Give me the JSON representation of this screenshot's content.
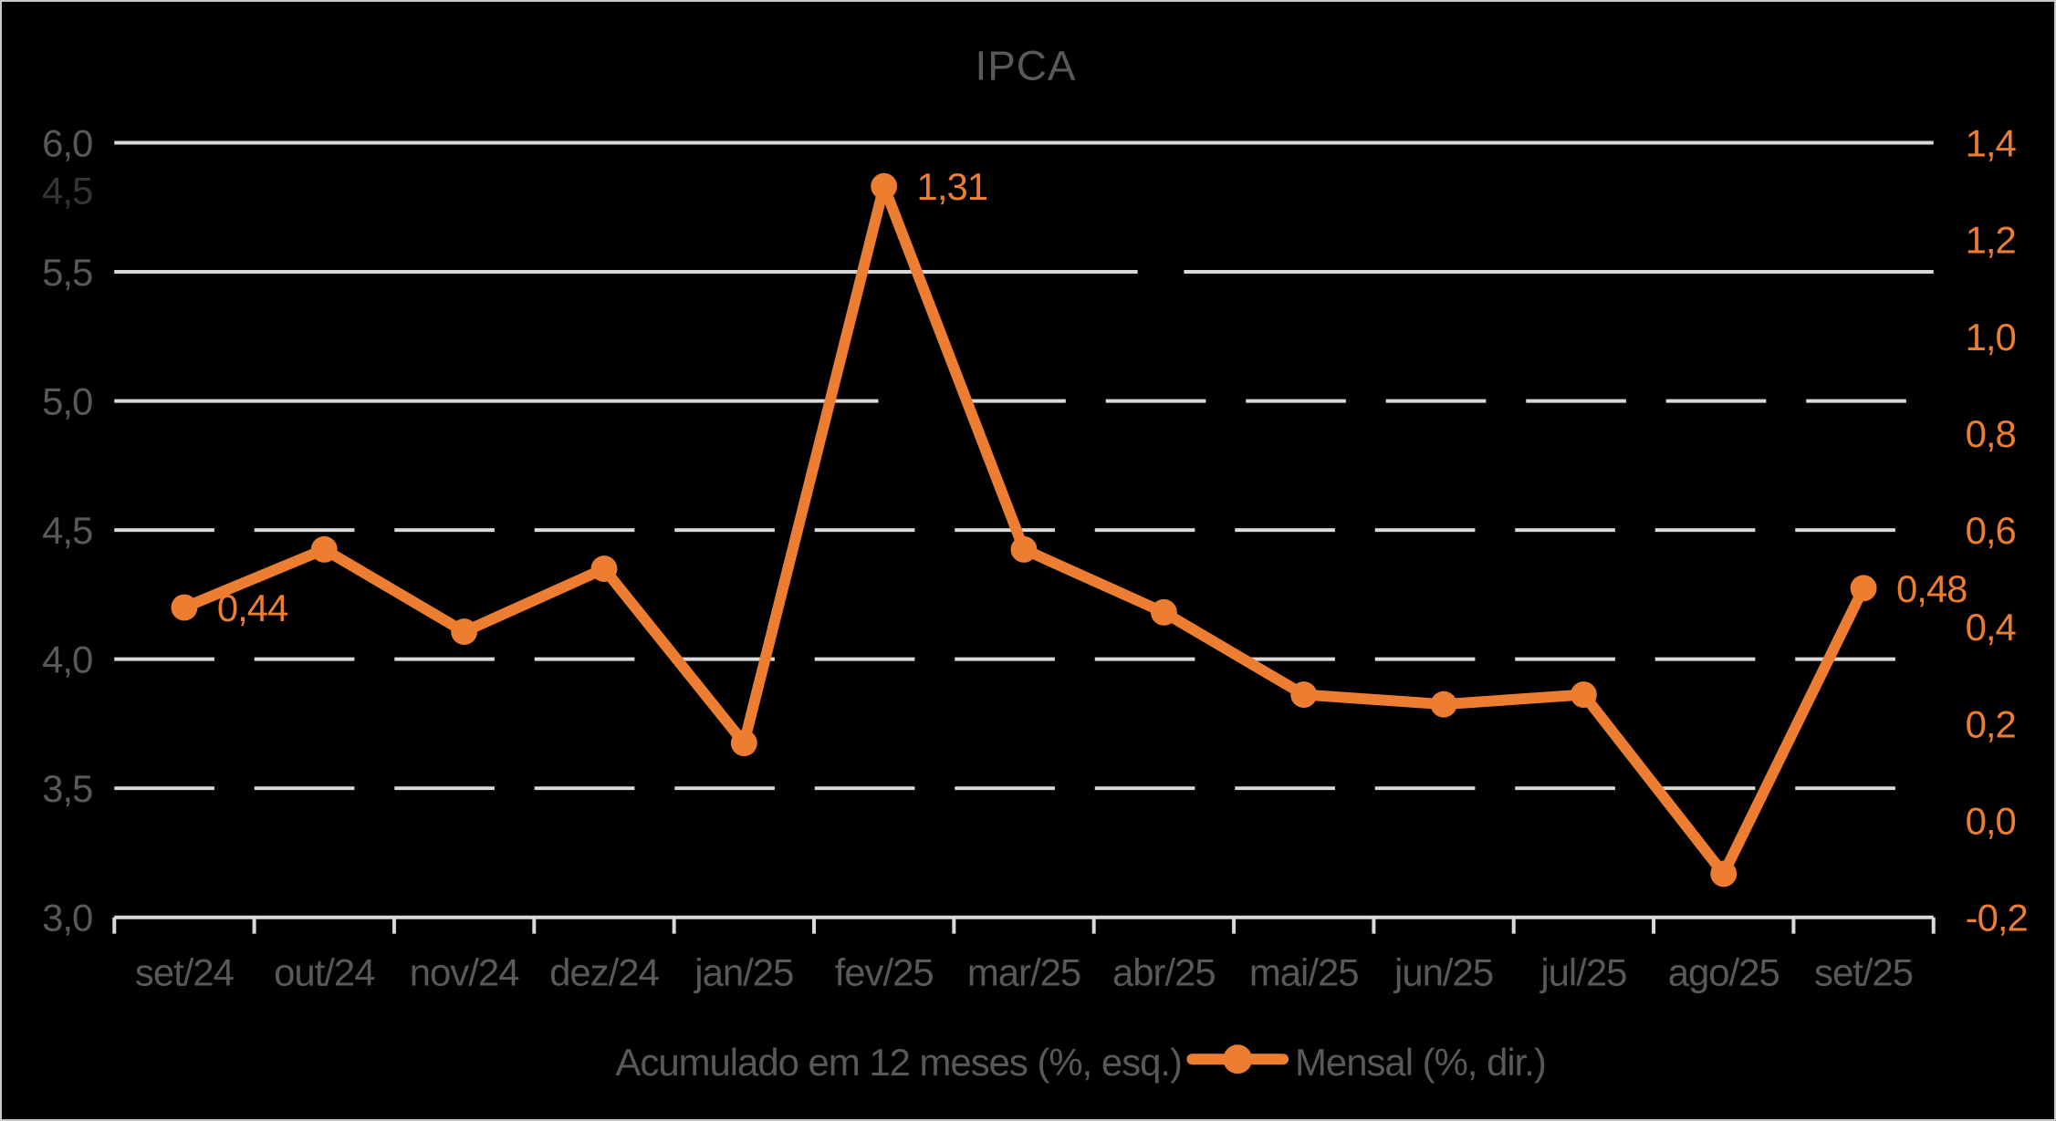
{
  "window": {
    "background": "#000000",
    "border_color": "#C9C9C9"
  },
  "chart_data": {
    "type": "line",
    "title": "IPCA",
    "categories": [
      "set/24",
      "out/24",
      "nov/24",
      "dez/24",
      "jan/25",
      "fev/25",
      "mar/25",
      "abr/25",
      "mai/25",
      "jun/25",
      "jul/25",
      "ago/25",
      "set/25"
    ],
    "series": [
      {
        "name": "Mensal (%, dir.)",
        "axis": "right",
        "color": "#ED7D31",
        "marker": "circle",
        "values": [
          0.44,
          0.56,
          0.39,
          0.52,
          0.16,
          1.31,
          0.56,
          0.43,
          0.26,
          0.24,
          0.26,
          -0.11,
          0.48
        ]
      }
    ],
    "data_labels": [
      {
        "index": 0,
        "text": "0,44"
      },
      {
        "index": 5,
        "text": "1,31"
      },
      {
        "index": 12,
        "text": "0,48"
      }
    ],
    "left_axis": {
      "range": [
        3.0,
        6.0
      ],
      "step": 0.5,
      "tick_labels": [
        "6,0",
        "5,5",
        "5,0",
        "4,5",
        "4,0",
        "3,5",
        "3,0"
      ],
      "color": "#595959"
    },
    "right_axis": {
      "range": [
        -0.2,
        1.4
      ],
      "step": 0.2,
      "tick_labels": [
        "1,4",
        "1,2",
        "1,0",
        "0,8",
        "0,6",
        "0,4",
        "0,2",
        "0,0",
        "-0,2"
      ],
      "color": "#ED7D31"
    },
    "x_axis": {
      "labels": [
        "set/24",
        "out/24",
        "nov/24",
        "dez/24",
        "jan/25",
        "fev/25",
        "mar/25",
        "abr/25",
        "mai/25",
        "jun/25",
        "jul/25",
        "ago/25",
        "set/25"
      ],
      "color": "#595959",
      "line_color": "#D9D9D9"
    },
    "legend": {
      "position": "bottom",
      "entries": [
        {
          "label": "Acumulado em 12 meses (%, esq.)",
          "swatch_color": "#000000"
        },
        {
          "label": "Mensal (%, dir.)",
          "swatch_color": "#ED7D31"
        }
      ]
    },
    "gridlines": {
      "color": "#D9D9D9",
      "lines": [
        {
          "at": 6.0,
          "segments": [
            {
              "from": 0,
              "to": 1,
              "dashed": false
            }
          ]
        },
        {
          "at": 5.5,
          "segments": [
            {
              "from": 0,
              "to": 0.5625,
              "dashed": false
            },
            {
              "from": 0.588,
              "to": 1,
              "dashed": false
            }
          ]
        },
        {
          "at": 5.0,
          "segments": [
            {
              "from": 0,
              "to": 0.42,
              "dashed": false
            },
            {
              "from": 0.468,
              "to": 1,
              "dashed": true
            }
          ]
        },
        {
          "at": 4.5,
          "segments": [
            {
              "from": 0,
              "to": 1,
              "dashed": true
            }
          ]
        },
        {
          "at": 4.0,
          "segments": [
            {
              "from": 0,
              "to": 1,
              "dashed": true
            }
          ]
        },
        {
          "at": 3.5,
          "segments": [
            {
              "from": 0,
              "to": 1,
              "dashed": true
            }
          ]
        }
      ]
    },
    "faint_artifact_label": {
      "text": "4,5",
      "color": "#343434"
    },
    "grid": true
  }
}
